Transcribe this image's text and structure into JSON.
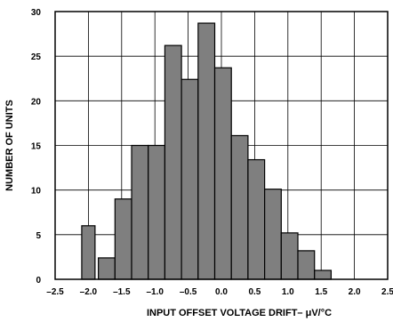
{
  "chart_data": {
    "type": "bar",
    "xlabel": "INPUT OFFSET VOLTAGE  DRIFT– μV/°C",
    "ylabel": "NUMBER OF UNITS",
    "xlim": [
      -2.5,
      2.5
    ],
    "ylim": [
      0,
      30
    ],
    "x_ticks": [
      "–2.5",
      "–2.0",
      "–1.5",
      "–1.0",
      "–0.5",
      "0.0",
      "0.5",
      "1.0",
      "1.5",
      "2.0",
      "2.5"
    ],
    "x_tick_values": [
      -2.5,
      -2.0,
      -1.5,
      -1.0,
      -0.5,
      0.0,
      0.5,
      1.0,
      1.5,
      2.0,
      2.5
    ],
    "y_ticks": [
      "0",
      "5",
      "10",
      "15",
      "20",
      "25",
      "30"
    ],
    "y_tick_values": [
      0,
      5,
      10,
      15,
      20,
      25,
      30
    ],
    "grid": true,
    "bins": [
      {
        "x0": -2.1,
        "x1": -1.9,
        "value": 6
      },
      {
        "x0": -1.85,
        "x1": -1.6,
        "value": 2.4
      },
      {
        "x0": -1.6,
        "x1": -1.35,
        "value": 9
      },
      {
        "x0": -1.35,
        "x1": -1.1,
        "value": 15
      },
      {
        "x0": -1.1,
        "x1": -0.85,
        "value": 15
      },
      {
        "x0": -0.85,
        "x1": -0.6,
        "value": 26.2
      },
      {
        "x0": -0.6,
        "x1": -0.35,
        "value": 22.4
      },
      {
        "x0": -0.35,
        "x1": -0.1,
        "value": 28.7
      },
      {
        "x0": -0.1,
        "x1": 0.15,
        "value": 23.7
      },
      {
        "x0": 0.15,
        "x1": 0.4,
        "value": 16.1
      },
      {
        "x0": 0.4,
        "x1": 0.65,
        "value": 13.4
      },
      {
        "x0": 0.65,
        "x1": 0.9,
        "value": 10.1
      },
      {
        "x0": 0.9,
        "x1": 1.15,
        "value": 5.2
      },
      {
        "x0": 1.15,
        "x1": 1.4,
        "value": 3.2
      },
      {
        "x0": 1.4,
        "x1": 1.65,
        "value": 1
      },
      {
        "x0": 1.65,
        "x1": 1.9,
        "value": 0
      }
    ],
    "colors": {
      "bar_fill": "#7f7f7f",
      "bar_stroke": "#000000",
      "grid": "#000000",
      "background": "#ffffff"
    }
  }
}
